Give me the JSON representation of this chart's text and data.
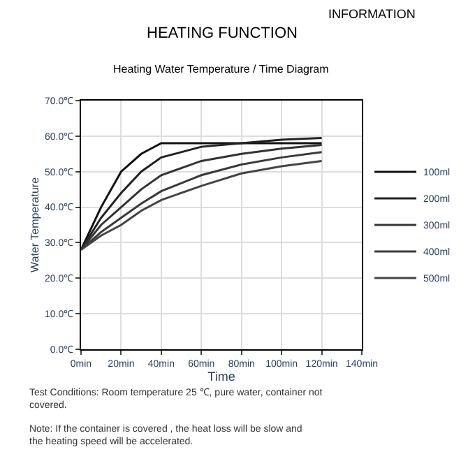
{
  "chart_data": {
    "type": "line",
    "title": "HEATING FUNCTION",
    "subtitle": "Heating Water Temperature / Time Diagram",
    "xlabel": "Time",
    "ylabel": "Water Temperature",
    "x": [
      0,
      10,
      20,
      30,
      40,
      60,
      80,
      100,
      120
    ],
    "series": [
      {
        "name": "100ml",
        "color": "#111111",
        "values": [
          28,
          40,
          50,
          55,
          58,
          58,
          58,
          58,
          58
        ]
      },
      {
        "name": "200ml",
        "color": "#222222",
        "values": [
          28,
          37,
          44,
          50,
          54,
          57,
          58,
          59,
          59.5
        ]
      },
      {
        "name": "300ml",
        "color": "#333333",
        "values": [
          28,
          35,
          40,
          45,
          49,
          53,
          55,
          56.5,
          57.5
        ]
      },
      {
        "name": "400ml",
        "color": "#3a3a3a",
        "values": [
          28,
          33,
          37,
          41,
          44.5,
          49,
          52,
          54,
          55.5
        ]
      },
      {
        "name": "500ml",
        "color": "#444444",
        "values": [
          28,
          32,
          35,
          39,
          42,
          46,
          49.5,
          51.5,
          53
        ]
      }
    ],
    "xlim": [
      0,
      140
    ],
    "xticks": [
      {
        "value": 0,
        "label": "0min"
      },
      {
        "value": 20,
        "label": "20min"
      },
      {
        "value": 40,
        "label": "40min"
      },
      {
        "value": 60,
        "label": "60min"
      },
      {
        "value": 80,
        "label": "80min"
      },
      {
        "value": 100,
        "label": "100min"
      },
      {
        "value": 120,
        "label": "120min"
      },
      {
        "value": 140,
        "label": "140min"
      }
    ],
    "ylim": [
      0,
      70
    ],
    "yticks": [
      {
        "value": 0,
        "label": "0.0℃"
      },
      {
        "value": 10,
        "label": "10.0℃"
      },
      {
        "value": 20,
        "label": "20.0℃"
      },
      {
        "value": 30,
        "label": "30.0℃"
      },
      {
        "value": 40,
        "label": "40.0℃"
      },
      {
        "value": 50,
        "label": "50.0℃"
      },
      {
        "value": 60,
        "label": "60.0℃"
      },
      {
        "value": 70,
        "label": "70.0℃"
      }
    ],
    "grid": true,
    "legend": "right",
    "line_style": "solid",
    "annotations": [
      "INFORMATION",
      "Test Conditions: Room temperature 25 ℃, pure water, container not covered.",
      "Note: If the container is covered , the heat loss will be slow and the heating speed will be accelerated."
    ]
  }
}
